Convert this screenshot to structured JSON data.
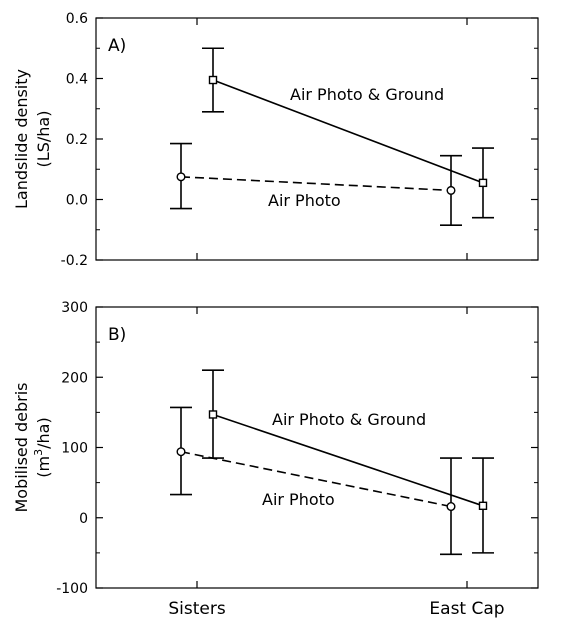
{
  "chart_data": [
    {
      "type": "line",
      "panel_label": "A)",
      "ylabel_lines": [
        "Landslide density",
        "(LS/ha)"
      ],
      "categories": [
        "Sisters",
        "East Cap"
      ],
      "ylim": [
        -0.2,
        0.6
      ],
      "yticks": [
        -0.2,
        0.0,
        0.2,
        0.4,
        0.6
      ],
      "ytick_labels": [
        "-0.2",
        "0.0",
        "0.2",
        "0.4",
        "0.6"
      ],
      "minor_yticks": [
        -0.1,
        0.1,
        0.3,
        0.5
      ],
      "grid": false,
      "series": [
        {
          "name": "Air Photo & Ground",
          "marker": "square",
          "line_style": "solid",
          "values": [
            0.395,
            0.055
          ],
          "error_low": [
            0.29,
            -0.06
          ],
          "error_high": [
            0.5,
            0.17
          ]
        },
        {
          "name": "Air Photo",
          "marker": "circle",
          "line_style": "dashed",
          "values": [
            0.075,
            0.03
          ],
          "error_low": [
            -0.03,
            -0.085
          ],
          "error_high": [
            0.185,
            0.145
          ]
        }
      ]
    },
    {
      "type": "line",
      "panel_label": "B)",
      "ylabel_text": "Mobilised debris",
      "ylabel_unit": {
        "before": "(m",
        "sup": "3",
        "after": "/ha)"
      },
      "categories": [
        "Sisters",
        "East Cap"
      ],
      "ylim": [
        -100,
        300
      ],
      "yticks": [
        -100,
        0,
        100,
        200,
        300
      ],
      "ytick_labels": [
        "-100",
        "0",
        "100",
        "200",
        "300"
      ],
      "minor_yticks": [
        -50,
        50,
        150,
        250
      ],
      "grid": false,
      "series": [
        {
          "name": "Air Photo & Ground",
          "marker": "square",
          "line_style": "solid",
          "values": [
            147,
            17
          ],
          "error_low": [
            85,
            -50
          ],
          "error_high": [
            210,
            85
          ]
        },
        {
          "name": "Air Photo",
          "marker": "circle",
          "line_style": "dashed",
          "values": [
            94,
            16
          ],
          "error_low": [
            33,
            -52
          ],
          "error_high": [
            157,
            85
          ]
        }
      ]
    }
  ]
}
